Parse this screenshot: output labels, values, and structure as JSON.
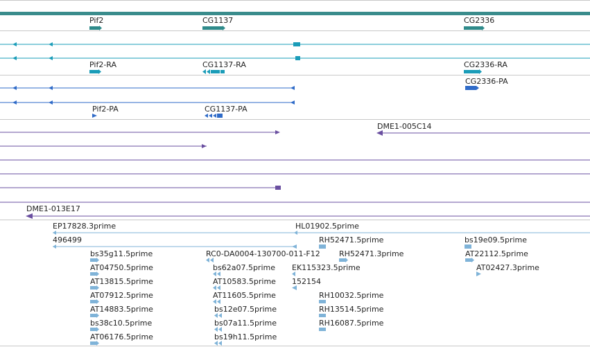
{
  "gene_track": {
    "labels": [
      "Pif2",
      "CG1137",
      "CG2336"
    ],
    "colors": {
      "band": "#3a8c8c",
      "gene": "#2e8a8a"
    }
  },
  "transcript_track": {
    "labels": [
      "Pif2-RA",
      "CG1137-RA",
      "CG2336-RA"
    ],
    "color": "#1a9cb8"
  },
  "cds_track": {
    "labels": [
      "CG2336-PA",
      "Pif2-PA",
      "CG1137-PA"
    ],
    "color": "#2f6bc8"
  },
  "clone_track": {
    "labels": [
      "DME1-005C14",
      "DME1-013E17"
    ],
    "color": "#6a4fa0"
  },
  "est_track": {
    "color": "#7fb3d8",
    "labels": [
      "EP17828.3prime",
      "HL01902.5prime",
      "496499",
      "RH52471.5prime",
      "bs19e09.5prime",
      "bs35g11.5prime",
      "RC0-DA0004-130700-011-F12",
      "RH52471.3prime",
      "AT22112.5prime",
      "AT04750.5prime",
      "bs62a07.5prime",
      "EK115323.5prime",
      "AT02427.3prime",
      "AT13815.5prime",
      "AT10583.5prime",
      "152154",
      "AT07912.5prime",
      "AT11605.5prime",
      "RH10032.5prime",
      "AT14883.5prime",
      "bs12e07.5prime",
      "RH13514.5prime",
      "bs38c10.5prime",
      "bs07a11.5prime",
      "RH16087.5prime",
      "AT06176.5prime",
      "bs19h11.5prime"
    ]
  }
}
